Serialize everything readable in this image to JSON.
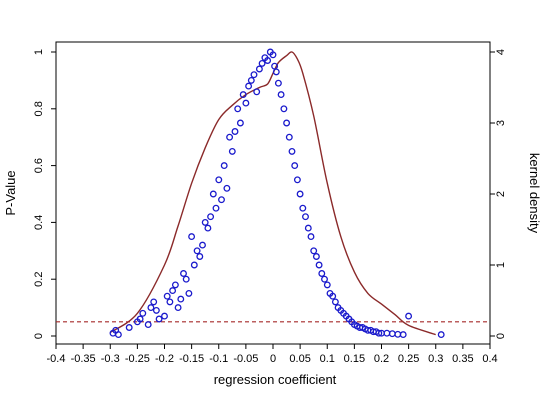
{
  "chart_data": {
    "type": "scatter",
    "xlabel": "regression coefficient",
    "ylabel": "P-Value",
    "y2label": "kernel density",
    "xlim": [
      -0.4,
      0.4
    ],
    "ylim": [
      0,
      1
    ],
    "y2lim": [
      0,
      4
    ],
    "x_ticks": [
      -0.4,
      -0.35,
      -0.3,
      -0.25,
      -0.2,
      -0.15,
      -0.1,
      -0.05,
      0,
      0.05,
      0.1,
      0.15,
      0.2,
      0.25,
      0.3,
      0.35,
      0.4
    ],
    "x_tick_labels": [
      "-0.4",
      "-0.35",
      "-0.3",
      "-0.25",
      "-0.2",
      "-0.15",
      "-0.1",
      "-0.05",
      "0",
      "0.05",
      "0.1",
      "0.15",
      "0.2",
      "0.25",
      "0.3",
      "0.35",
      "0.4"
    ],
    "y_ticks": [
      0,
      0.2,
      0.4,
      0.6,
      0.8,
      1
    ],
    "y_tick_labels": [
      "0",
      "0.2",
      "0.4",
      "0.6",
      "0.8",
      "1"
    ],
    "y2_ticks": [
      0,
      1,
      2,
      3,
      4
    ],
    "y2_tick_labels": [
      "0",
      "1",
      "2",
      "3",
      "4"
    ],
    "reference_line_y": 0.05,
    "grid": false,
    "colors": {
      "points": "#1a1acc",
      "kde": "#8b2a2a",
      "reference": "#a52a2a"
    },
    "scatter": {
      "x": [
        -0.295,
        -0.29,
        -0.285,
        -0.265,
        -0.25,
        -0.245,
        -0.24,
        -0.23,
        -0.225,
        -0.22,
        -0.215,
        -0.21,
        -0.2,
        -0.195,
        -0.19,
        -0.185,
        -0.18,
        -0.175,
        -0.17,
        -0.165,
        -0.16,
        -0.155,
        -0.15,
        -0.145,
        -0.14,
        -0.135,
        -0.13,
        -0.125,
        -0.12,
        -0.115,
        -0.11,
        -0.105,
        -0.1,
        -0.095,
        -0.09,
        -0.085,
        -0.08,
        -0.075,
        -0.07,
        -0.065,
        -0.06,
        -0.055,
        -0.05,
        -0.045,
        -0.04,
        -0.035,
        -0.03,
        -0.025,
        -0.02,
        -0.015,
        -0.01,
        -0.005,
        0,
        0.003,
        0.006,
        0.01,
        0.015,
        0.02,
        0.025,
        0.03,
        0.035,
        0.04,
        0.045,
        0.05,
        0.055,
        0.06,
        0.065,
        0.07,
        0.075,
        0.08,
        0.085,
        0.09,
        0.095,
        0.1,
        0.105,
        0.11,
        0.115,
        0.12,
        0.125,
        0.13,
        0.135,
        0.14,
        0.145,
        0.15,
        0.155,
        0.16,
        0.165,
        0.17,
        0.175,
        0.18,
        0.185,
        0.19,
        0.195,
        0.2,
        0.21,
        0.22,
        0.23,
        0.24,
        0.25,
        0.31
      ],
      "y": [
        0.01,
        0.02,
        0.005,
        0.03,
        0.05,
        0.06,
        0.08,
        0.04,
        0.1,
        0.12,
        0.09,
        0.06,
        0.07,
        0.14,
        0.12,
        0.16,
        0.18,
        0.1,
        0.13,
        0.22,
        0.2,
        0.15,
        0.35,
        0.25,
        0.3,
        0.28,
        0.32,
        0.4,
        0.38,
        0.42,
        0.5,
        0.45,
        0.55,
        0.48,
        0.6,
        0.52,
        0.7,
        0.65,
        0.72,
        0.8,
        0.75,
        0.85,
        0.82,
        0.88,
        0.9,
        0.92,
        0.86,
        0.94,
        0.96,
        0.98,
        0.97,
        1.0,
        0.99,
        0.95,
        0.93,
        0.89,
        0.85,
        0.8,
        0.75,
        0.7,
        0.65,
        0.6,
        0.55,
        0.5,
        0.45,
        0.42,
        0.38,
        0.35,
        0.3,
        0.28,
        0.25,
        0.22,
        0.2,
        0.18,
        0.15,
        0.14,
        0.12,
        0.1,
        0.09,
        0.08,
        0.07,
        0.06,
        0.05,
        0.04,
        0.035,
        0.03,
        0.03,
        0.025,
        0.02,
        0.02,
        0.015,
        0.015,
        0.01,
        0.01,
        0.01,
        0.008,
        0.006,
        0.005,
        0.07,
        0.005
      ]
    },
    "kde": {
      "x": [
        -0.3,
        -0.25,
        -0.2,
        -0.175,
        -0.15,
        -0.125,
        -0.1,
        -0.075,
        -0.05,
        -0.025,
        -0.01,
        0,
        0.01,
        0.025,
        0.035,
        0.045,
        0.055,
        0.075,
        0.1,
        0.125,
        0.15,
        0.175,
        0.2,
        0.225,
        0.25,
        0.3
      ],
      "density": [
        0.05,
        0.32,
        1.0,
        1.55,
        2.15,
        2.65,
        3.05,
        3.25,
        3.4,
        3.5,
        3.55,
        3.7,
        3.85,
        3.95,
        4.0,
        3.9,
        3.7,
        3.1,
        2.15,
        1.4,
        0.9,
        0.6,
        0.45,
        0.3,
        0.15,
        0.02
      ]
    }
  }
}
